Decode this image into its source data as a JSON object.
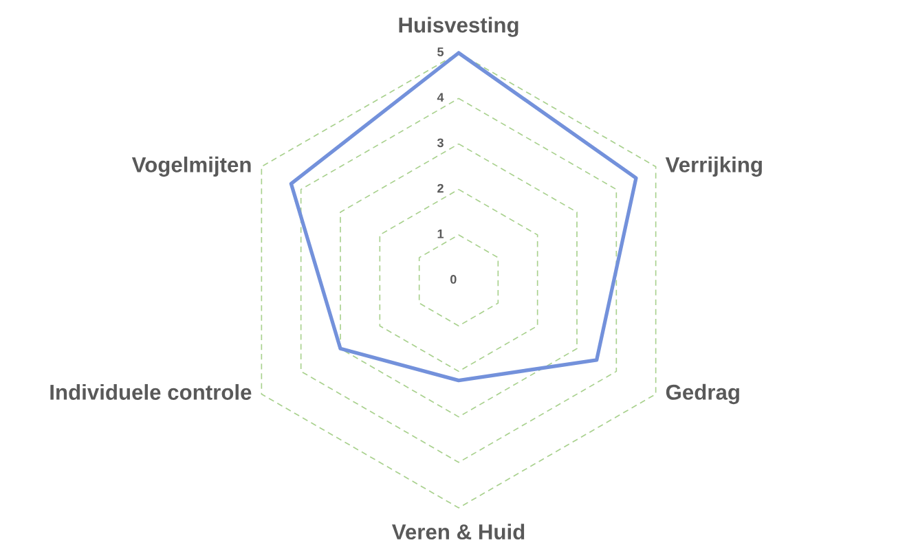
{
  "chart_data": {
    "type": "radar",
    "categories": [
      "Huisvesting",
      "Verrijking",
      "Gedrag",
      "Veren & Huid",
      "Individuele controle",
      "Vogelmijten"
    ],
    "series": [
      {
        "color": "#7391db",
        "values": [
          5,
          4.5,
          3.5,
          2.2,
          3,
          4.25
        ]
      }
    ],
    "ylim": [
      0,
      5
    ],
    "yticks": [
      0,
      1,
      2,
      3,
      4,
      5
    ],
    "grid": true
  }
}
